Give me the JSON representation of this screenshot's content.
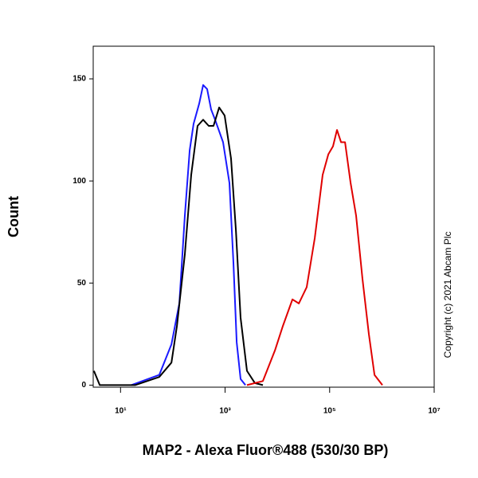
{
  "chart_data": {
    "type": "line",
    "x_label": "MAP2 - Alexa Fluor®488 (530/30 BP)",
    "y_label": "Count",
    "annotation": "Copyright (c) 2021 Abcam Plc",
    "xscale": "log",
    "xlim": [
      3,
      10000000
    ],
    "ylim": [
      -1,
      166
    ],
    "xticks": [
      {
        "value": 10,
        "label": "10¹"
      },
      {
        "value": 1000,
        "label": "10³"
      },
      {
        "value": 100000,
        "label": "10⁵"
      },
      {
        "value": 10000000,
        "label": "10⁷"
      }
    ],
    "yticks": [
      0,
      50,
      100,
      150
    ],
    "series": [
      {
        "color": "#1a1aff",
        "x": [
          16,
          55,
          94,
          133,
          170,
          210,
          250,
          320,
          381,
          454,
          541,
          645,
          916,
          1213,
          1445,
          1665,
          1983,
          2449
        ],
        "values": [
          0,
          5,
          20,
          40,
          83,
          115,
          128,
          138,
          147,
          145,
          135,
          130,
          119,
          99,
          60,
          21,
          3,
          0
        ]
      },
      {
        "color": "#000000",
        "x": [
          3.1,
          4,
          19,
          55,
          94,
          120,
          170,
          225,
          298,
          381,
          487,
          601,
          769,
          982,
          1300,
          1607,
          1983,
          2624,
          3724,
          5297
        ],
        "values": [
          7,
          0,
          0,
          4,
          11,
          29,
          64,
          103,
          127,
          130,
          127,
          127,
          136,
          132,
          111,
          76,
          33,
          7,
          1,
          0
        ]
      },
      {
        "color": "#e00000",
        "x": [
          2624,
          5297,
          8974,
          12740,
          19410,
          25700,
          36480,
          51880,
          73620,
          94190,
          116100,
          138400,
          165200,
          196800,
          251700,
          321400,
          425600,
          563700,
          721000,
          1023000
        ],
        "values": [
          0,
          2,
          17,
          29,
          42,
          40,
          48,
          72,
          103,
          113,
          117,
          125,
          119,
          119,
          99,
          83,
          52,
          25,
          5,
          0
        ]
      }
    ]
  }
}
